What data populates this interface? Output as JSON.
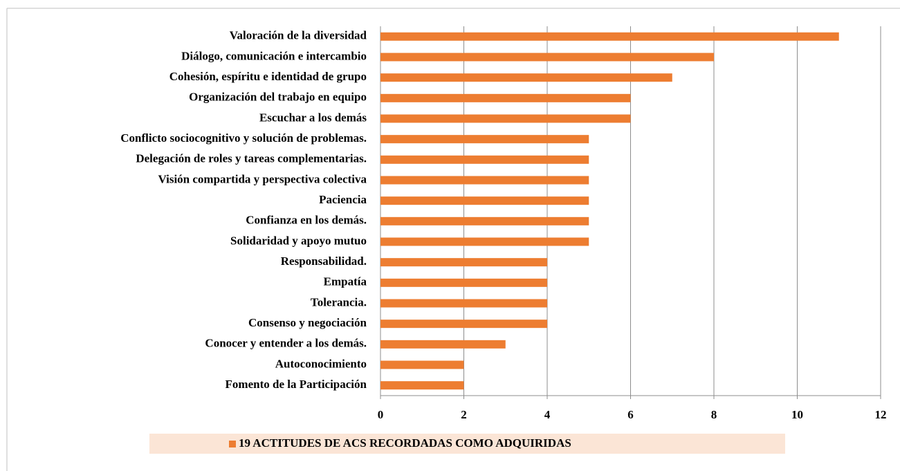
{
  "chart_data": {
    "type": "bar",
    "orientation": "horizontal",
    "categories": [
      "Valoración de la diversidad",
      "Diálogo, comunicación e intercambio",
      "Cohesión, espíritu e identidad de grupo",
      "Organización del trabajo en equipo",
      "Escuchar a los demás",
      "Conflicto sociocognitivo y solución de problemas.",
      "Delegación de roles y tareas complementarias.",
      "Visión compartida y perspectiva colectiva",
      "Paciencia",
      "Confianza en los demás.",
      "Solidaridad y apoyo mutuo",
      "Responsabilidad.",
      "Empatía",
      "Tolerancia.",
      "Consenso y negociación",
      "Conocer y entender a los demás.",
      "Autoconocimiento",
      "Fomento de la Participación"
    ],
    "series": [
      {
        "name": "19 ACTITUDES DE ACS RECORDADAS COMO ADQUIRIDAS",
        "color": "#ed7d31",
        "values": [
          11,
          8,
          7,
          6,
          6,
          5,
          5,
          5,
          5,
          5,
          5,
          4,
          4,
          4,
          4,
          3,
          2,
          2
        ]
      }
    ],
    "xlim": [
      0,
      12
    ],
    "xticks": [
      0,
      2,
      4,
      6,
      8,
      10,
      12
    ],
    "grid": true,
    "legend": "bottom"
  }
}
